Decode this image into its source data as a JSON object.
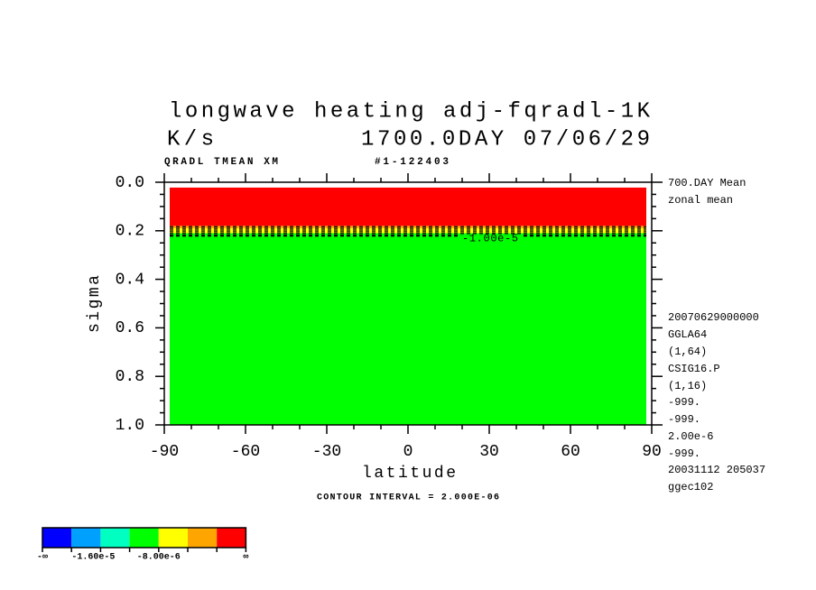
{
  "chart_data": {
    "type": "contour",
    "title": "longwave heating adj-fqradl-1K",
    "units": "K/s",
    "time": "1700.0DAY 07/06/29",
    "subtitle_left": "QRADL TMEAN XM",
    "subtitle_right": "#1-122403",
    "xlabel": "latitude",
    "ylabel": "sigma",
    "xlim": [
      -90,
      90
    ],
    "ylim": [
      0,
      1
    ],
    "y_inverted": true,
    "xticks": [
      -90,
      -60,
      -30,
      0,
      30,
      60,
      90
    ],
    "xminorticks": [
      -80,
      -70,
      -50,
      -40,
      -20,
      -10,
      10,
      20,
      40,
      50,
      70,
      80
    ],
    "yticks": [
      {
        "value": 0,
        "label": "0.0"
      },
      0.2,
      0.4,
      0.6,
      0.8,
      {
        "value": 1,
        "label": "1.0"
      }
    ],
    "yminorticks": [
      0.05,
      0.1,
      0.15,
      0.25,
      0.3,
      0.35,
      0.45,
      0.5,
      0.55,
      0.65,
      0.7,
      0.75,
      0.85,
      0.9,
      0.95
    ],
    "lat_range": [
      -88,
      88
    ],
    "bands": [
      {
        "from": 0.022,
        "to": 0.18,
        "color": "#ff0000"
      },
      {
        "from": 0.18,
        "to": 0.19,
        "color": "#ffa500"
      },
      {
        "from": 0.19,
        "to": 0.21,
        "color": "#ffff00"
      },
      {
        "from": 0.21,
        "to": 1.0,
        "color": "#00ff00"
      }
    ],
    "contour_levels": [
      0.183,
      0.19,
      0.197,
      0.204,
      0.211,
      0.218,
      0.222
    ],
    "contour_label": {
      "text": "-1.00e-5",
      "x": 20,
      "y": 0.22
    },
    "right_notes": [
      "700.DAY Mean",
      "zonal mean",
      "20070629000000",
      "GGLA64",
      "(1,64)",
      "CSIG16.P",
      "(1,16)",
      "-999.",
      "-999.",
      "2.00e-6",
      "-999.",
      "20031112 205037",
      "ggec102"
    ],
    "footer": "CONTOUR INTERVAL = 2.000E-06",
    "colorbar": {
      "colors": [
        "#0000ff",
        "#00a0ff",
        "#00ffc0",
        "#00ff00",
        "#ffff00",
        "#ffa500",
        "#ff0000"
      ],
      "labels": [
        "-∞",
        null,
        "-1.60e-5",
        null,
        "-8.00e-6",
        null,
        null,
        "∞"
      ]
    }
  }
}
